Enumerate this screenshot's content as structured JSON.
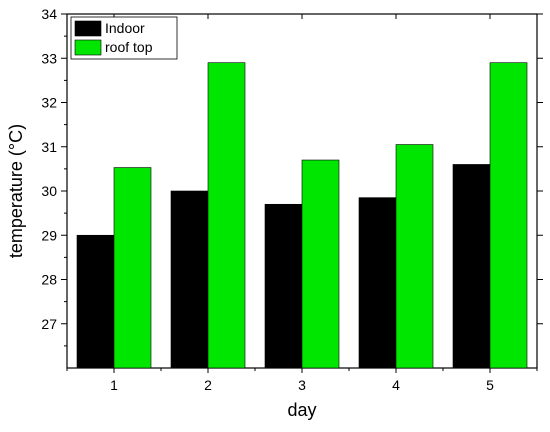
{
  "chart_data": {
    "type": "bar",
    "categories": [
      "1",
      "2",
      "3",
      "4",
      "5"
    ],
    "series": [
      {
        "name": "Indoor",
        "color": "#000000",
        "values": [
          29.0,
          30.0,
          29.7,
          29.85,
          30.6
        ]
      },
      {
        "name": "roof top",
        "color": "#00e600",
        "values": [
          30.53,
          32.9,
          30.7,
          31.05,
          32.9
        ]
      }
    ],
    "xlabel": "day",
    "ylabel": "temperature (°C)",
    "ylim": [
      26,
      34
    ],
    "yticks": [
      "27",
      "28",
      "29",
      "30",
      "31",
      "32",
      "33",
      "34"
    ],
    "legend_position": "top-left",
    "grid": false
  }
}
